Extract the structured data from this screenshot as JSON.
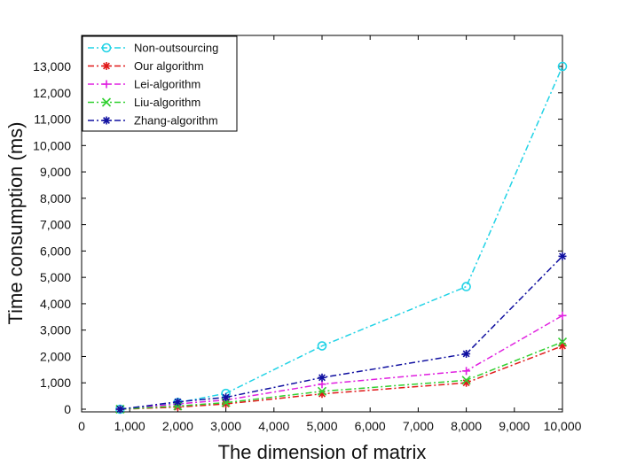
{
  "chart_data": {
    "type": "line",
    "xlabel": "The dimension of matrix",
    "ylabel": "Time consumption (ms)",
    "xlim": [
      0,
      10000
    ],
    "ylim": [
      0,
      14000
    ],
    "x_ticks": [
      {
        "value": 0,
        "label": "0"
      },
      {
        "value": 1000,
        "label": "1,000"
      },
      {
        "value": 2000,
        "label": "2,000"
      },
      {
        "value": 3000,
        "label": "3,000"
      },
      {
        "value": 4000,
        "label": "4,000"
      },
      {
        "value": 5000,
        "label": "5,000"
      },
      {
        "value": 6000,
        "label": "6,000"
      },
      {
        "value": 7000,
        "label": "7,000"
      },
      {
        "value": 8000,
        "label": "8,000"
      },
      {
        "value": 9000,
        "label": "9,000"
      },
      {
        "value": 10000,
        "label": "10,000"
      }
    ],
    "y_ticks": [
      {
        "value": 0,
        "label": "0"
      },
      {
        "value": 1000,
        "label": "1,000"
      },
      {
        "value": 2000,
        "label": "2,000"
      },
      {
        "value": 3000,
        "label": "3,000"
      },
      {
        "value": 4000,
        "label": "4,000"
      },
      {
        "value": 5000,
        "label": "5,000"
      },
      {
        "value": 6000,
        "label": "6,000"
      },
      {
        "value": 7000,
        "label": "7,000"
      },
      {
        "value": 8000,
        "label": "8,000"
      },
      {
        "value": 9000,
        "label": "9,000"
      },
      {
        "value": 10000,
        "label": "10,000"
      },
      {
        "value": 11000,
        "label": "11,000"
      },
      {
        "value": 12000,
        "label": "12,000"
      },
      {
        "value": 13000,
        "label": "13,000"
      }
    ],
    "grid": false,
    "legend_position": "top-left",
    "x": [
      800,
      2000,
      3000,
      5000,
      8000,
      10000
    ],
    "series": [
      {
        "name": "Non-outsourcing",
        "color": "#22d3e6",
        "marker": "circle",
        "values": [
          0,
          250,
          600,
          2400,
          4650,
          13000
        ]
      },
      {
        "name": "Our algorithm",
        "color": "#e01818",
        "marker": "asterisk",
        "values": [
          0,
          80,
          200,
          580,
          1000,
          2400
        ]
      },
      {
        "name": "Lei-algorithm",
        "color": "#e020e0",
        "marker": "plus",
        "values": [
          0,
          200,
          350,
          950,
          1450,
          3550
        ]
      },
      {
        "name": "Liu-algorithm",
        "color": "#30d030",
        "marker": "x",
        "values": [
          0,
          120,
          250,
          680,
          1100,
          2550
        ]
      },
      {
        "name": "Zhang-algorithm",
        "color": "#1010a0",
        "marker": "asterisk",
        "values": [
          0,
          280,
          450,
          1200,
          2100,
          5800
        ]
      }
    ]
  }
}
